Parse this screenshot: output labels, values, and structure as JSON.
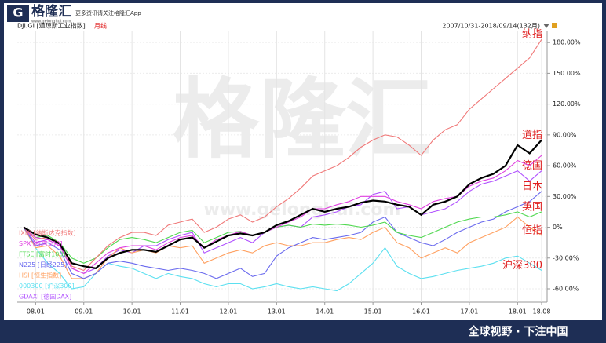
{
  "header": {
    "logo": "格隆汇",
    "slogan": "更多资讯请关注格隆汇App",
    "site": "www.gelonghui.com"
  },
  "chart_data": {
    "type": "line",
    "subtitle": "月线",
    "range_label": "2007/10/31-2018/09/14(132月)",
    "watermark": "格隆汇",
    "watermark_site": "www.gelonghui.com",
    "categories": [
      null,
      "08.01",
      null,
      null,
      null,
      "09.01",
      null,
      null,
      null,
      "10.01",
      null,
      null,
      null,
      "11.01",
      null,
      null,
      null,
      "12.01",
      null,
      null,
      null,
      "13.01",
      null,
      null,
      null,
      "14.01",
      null,
      null,
      null,
      "15.01",
      null,
      null,
      null,
      "16.01",
      null,
      null,
      null,
      "17.01",
      null,
      null,
      null,
      "18.01",
      null,
      "18.08"
    ],
    "series": [
      {
        "name": "DJI.GI [道琼斯工业指数]",
        "color": "#000000",
        "end_label": "道指",
        "values": [
          0,
          -7,
          -10,
          -16,
          -35,
          -38,
          -40,
          -30,
          -25,
          -22,
          -22,
          -24,
          -18,
          -12,
          -10,
          -20,
          -14,
          -8,
          -6,
          -8,
          -5,
          2,
          6,
          12,
          18,
          15,
          18,
          20,
          24,
          26,
          25,
          22,
          20,
          12,
          22,
          25,
          30,
          42,
          48,
          52,
          60,
          80,
          72,
          85
        ]
      },
      {
        "name": "IXIC [纳斯达克指数]",
        "color": "#f07878",
        "end_label": "纳指",
        "values": [
          0,
          -12,
          -10,
          -15,
          -38,
          -42,
          -30,
          -18,
          -10,
          -5,
          -5,
          -8,
          2,
          5,
          8,
          -5,
          0,
          8,
          12,
          5,
          10,
          20,
          28,
          38,
          50,
          55,
          60,
          68,
          78,
          85,
          90,
          88,
          80,
          70,
          85,
          95,
          100,
          115,
          125,
          135,
          145,
          155,
          165,
          183
        ]
      },
      {
        "name": "SPX [标普500]",
        "color": "#e040e0",
        "values": [
          0,
          -10,
          -12,
          -18,
          -40,
          -45,
          -35,
          -25,
          -20,
          -18,
          -18,
          -22,
          -15,
          -10,
          -8,
          -20,
          -12,
          -8,
          -4,
          -8,
          -5,
          0,
          5,
          10,
          18,
          18,
          22,
          25,
          30,
          30,
          30,
          25,
          22,
          18,
          25,
          28,
          30,
          40,
          45,
          48,
          55,
          65,
          60,
          70
        ]
      },
      {
        "name": "FTSE [富时100]",
        "color": "#50d850",
        "end_label": "英国",
        "values": [
          0,
          -10,
          -8,
          -15,
          -30,
          -35,
          -30,
          -20,
          -12,
          -10,
          -12,
          -15,
          -10,
          -5,
          -3,
          -15,
          -10,
          -5,
          -4,
          -8,
          -5,
          0,
          2,
          0,
          3,
          2,
          3,
          2,
          0,
          2,
          5,
          -5,
          -8,
          -10,
          -5,
          0,
          5,
          8,
          10,
          10,
          12,
          15,
          10,
          15
        ]
      },
      {
        "name": "N225 [日经225]",
        "color": "#6a6aee",
        "end_label": "日本",
        "values": [
          0,
          -18,
          -15,
          -22,
          -45,
          -50,
          -45,
          -35,
          -33,
          -35,
          -38,
          -40,
          -42,
          -40,
          -42,
          -45,
          -50,
          -45,
          -40,
          -48,
          -45,
          -28,
          -20,
          -15,
          -10,
          -12,
          -10,
          -8,
          -5,
          5,
          10,
          -5,
          -10,
          -15,
          -18,
          -12,
          -5,
          0,
          5,
          8,
          15,
          20,
          25,
          35
        ]
      },
      {
        "name": "HSI [恒生指数]",
        "color": "#ffa060",
        "end_label": "恒指",
        "values": [
          0,
          -20,
          -18,
          -28,
          -50,
          -50,
          -45,
          -30,
          -20,
          -25,
          -22,
          -25,
          -18,
          -20,
          -18,
          -35,
          -30,
          -25,
          -22,
          -25,
          -18,
          -15,
          -18,
          -18,
          -15,
          -15,
          -12,
          -10,
          -12,
          -5,
          0,
          -15,
          -20,
          -30,
          -25,
          -20,
          -25,
          -15,
          -10,
          -5,
          0,
          10,
          0,
          -8
        ]
      },
      {
        "name": "000300 [沪深300]",
        "color": "#5ce0f0",
        "end_label": "沪深300",
        "values": [
          0,
          -20,
          -35,
          -45,
          -60,
          -58,
          -45,
          -35,
          -38,
          -40,
          -45,
          -50,
          -45,
          -48,
          -50,
          -55,
          -58,
          -55,
          -55,
          -60,
          -58,
          -55,
          -58,
          -60,
          -58,
          -60,
          -62,
          -55,
          -45,
          -35,
          -20,
          -38,
          -45,
          -50,
          -48,
          -45,
          -42,
          -40,
          -38,
          -35,
          -30,
          -28,
          -35,
          -42
        ]
      },
      {
        "name": "GDAXI [德国DAX]",
        "color": "#b050ff",
        "end_label": "德国",
        "values": [
          0,
          -15,
          -12,
          -18,
          -40,
          -45,
          -40,
          -28,
          -22,
          -25,
          -18,
          -18,
          -12,
          -8,
          -5,
          -25,
          -20,
          -15,
          -10,
          -15,
          -5,
          0,
          2,
          0,
          10,
          12,
          15,
          20,
          22,
          32,
          35,
          18,
          20,
          12,
          15,
          18,
          25,
          35,
          42,
          45,
          50,
          55,
          45,
          55
        ]
      }
    ],
    "ylim": [
      -73,
      200
    ],
    "yticks": [
      {
        "value": 180,
        "label": "180.00%"
      },
      {
        "value": 150,
        "label": "150.00%"
      },
      {
        "value": 120,
        "label": "120.00%"
      },
      {
        "value": 90,
        "label": "90.00%"
      },
      {
        "value": 60,
        "label": "60.00%"
      },
      {
        "value": 30,
        "label": "30.00%"
      },
      {
        "value": 0,
        "label": "0%"
      },
      {
        "value": -30,
        "label": "-30.00%"
      },
      {
        "value": -60,
        "label": "-60.00%"
      }
    ],
    "grid": true
  },
  "footer": {
    "banner": "全球视野 · 下注中国"
  }
}
